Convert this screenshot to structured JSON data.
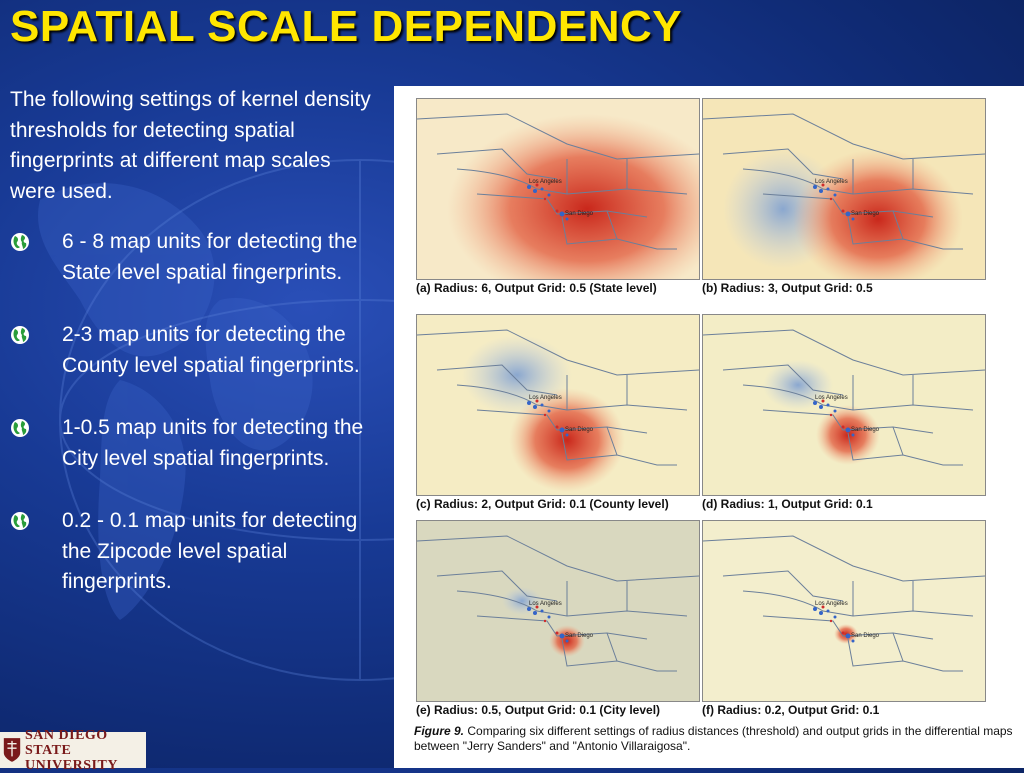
{
  "slide": {
    "title": "SPATIAL SCALE DEPENDENCY",
    "intro": "The following settings of kernel density thresholds for detecting spatial fingerprints at different map scales were used.",
    "bullets": [
      "6 - 8 map units for detecting the State level spatial fingerprints.",
      "2-3 map units for detecting the County level spatial fingerprints.",
      "1-0.5 map units for detecting the City level spatial fingerprints.",
      "0.2 - 0.1 map units for detecting the Zipcode level spatial fingerprints."
    ],
    "bullet_icon": "globe-icon"
  },
  "figure": {
    "panels": [
      {
        "caption": "(a)  Radius: 6, Output Grid: 0.5 (State level)"
      },
      {
        "caption": "(b) Radius: 3, Output Grid: 0.5"
      },
      {
        "caption": "(c) Radius: 2, Output Grid: 0.1 (County level)"
      },
      {
        "caption": "(d) Radius: 1, Output Grid: 0.1"
      },
      {
        "caption": "(e) Radius: 0.5, Output Grid: 0.1 (City level)"
      },
      {
        "caption": "(f) Radius: 0.2, Output Grid: 0.1"
      }
    ],
    "map_labels": {
      "los_angeles": "Los Angeles",
      "san_diego": "San Diego"
    },
    "caption_label": "Figure  9.",
    "caption_text": " Comparing six different settings of radius distances (threshold) and output grids in the differential maps between \"Jerry Sanders\" and \"Antonio Villaraigosa\"."
  },
  "logo": {
    "line1": "SAN DIEGO STATE",
    "line2": "UNIVERSITY"
  },
  "colors": {
    "title": "#ffe600",
    "background": "#1a3c9a",
    "hot": "#d9432a",
    "cold": "#9fb6d6"
  }
}
